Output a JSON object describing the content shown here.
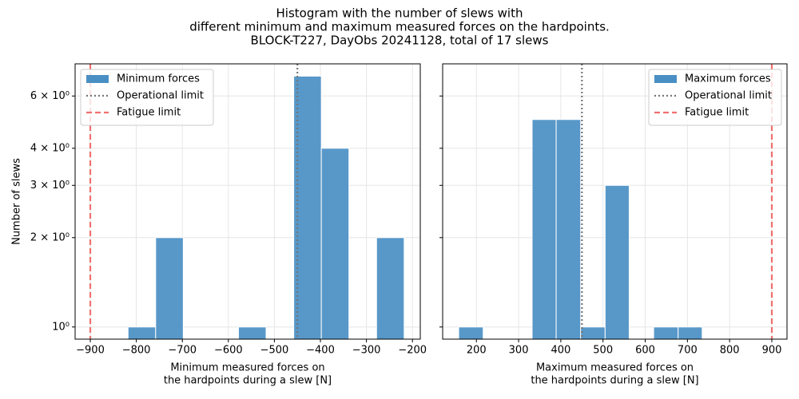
{
  "title": [
    "Histogram with the number of slews with",
    "different minimum and maximum measured forces on the hardpoints.",
    "BLOCK-T227, DayObs 20241128, total of 17 slews"
  ],
  "chart_data": [
    {
      "type": "histogram",
      "bins": [
        -818,
        -758,
        -698,
        -638,
        -578,
        -518,
        -458,
        -398,
        -338,
        -278,
        -218
      ],
      "values": [
        1,
        2,
        0,
        0,
        1,
        0,
        7,
        4,
        0,
        2
      ],
      "series_name": "Minimum forces",
      "color": "#4a8fc4",
      "xlabel": [
        "Minimum measured forces on",
        "the hardpoints during a slew [N]"
      ],
      "ylabel": "Number of slews",
      "xlim": [
        -933,
        -183
      ],
      "xticks": [
        {
          "value": -900,
          "label": "−900"
        },
        {
          "value": -800,
          "label": "−800"
        },
        {
          "value": -700,
          "label": "−700"
        },
        {
          "value": -600,
          "label": "−600"
        },
        {
          "value": -500,
          "label": "−500"
        },
        {
          "value": -400,
          "label": "−400"
        },
        {
          "value": -300,
          "label": "−300"
        },
        {
          "value": -200,
          "label": "−200"
        }
      ],
      "ylim": [
        0.91,
        7.7
      ],
      "yticks": [
        {
          "value": 1,
          "label": "10⁰"
        },
        {
          "value": 2,
          "label": "2 × 10⁰"
        },
        {
          "value": 3,
          "label": "3 × 10⁰"
        },
        {
          "value": 4,
          "label": "4 × 10⁰"
        },
        {
          "value": 6,
          "label": "6 × 10⁰"
        }
      ],
      "log_y": true,
      "grid": true,
      "legend": "upper left",
      "reference_lines": [
        {
          "name": "Operational limit",
          "value": -450,
          "color": "#777777",
          "style": "dotted"
        },
        {
          "name": "Fatigue limit",
          "value": -900,
          "color": "#f07070",
          "style": "dashed"
        }
      ]
    },
    {
      "type": "histogram",
      "bins": [
        158,
        216,
        274,
        332,
        389,
        447,
        505,
        562,
        620,
        678,
        735
      ],
      "values": [
        1,
        0,
        0,
        5,
        5,
        1,
        3,
        0,
        1,
        1
      ],
      "series_name": "Maximum forces",
      "color": "#4a8fc4",
      "xlabel": [
        "Maximum measured forces on",
        "the hardpoints during a slew [N]"
      ],
      "xlim": [
        120,
        936
      ],
      "xticks": [
        200,
        300,
        400,
        500,
        600,
        700,
        800,
        900
      ],
      "ylim": [
        0.91,
        7.7
      ],
      "log_y": true,
      "grid": true,
      "legend": "upper right",
      "reference_lines": [
        {
          "name": "Operational limit",
          "value": 450,
          "color": "#777777",
          "style": "dotted"
        },
        {
          "name": "Fatigue limit",
          "value": 900,
          "color": "#f07070",
          "style": "dashed"
        }
      ]
    }
  ]
}
